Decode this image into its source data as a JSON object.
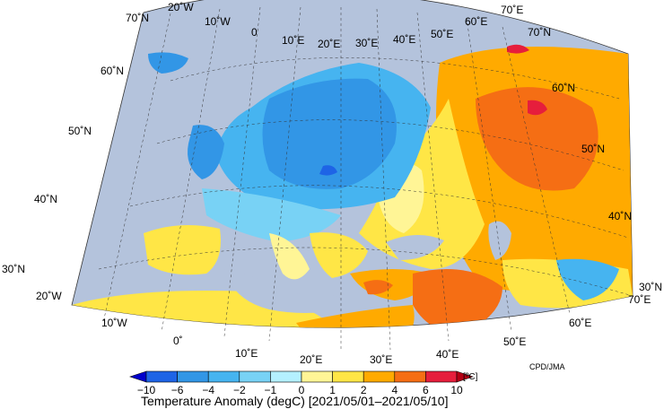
{
  "map": {
    "title": "Temperature Anomaly (degC) [2021/05/01–2021/05/10]",
    "credit": "CPD/JMA",
    "unit_label": "[ºC]",
    "lon_labels": [
      "20˚W",
      "10˚W",
      "0",
      "10˚E",
      "20˚E",
      "30˚E",
      "40˚E",
      "50˚E",
      "60˚E",
      "70˚E"
    ],
    "lon_labels_bottom": [
      "20˚W",
      "10˚W",
      "0˚",
      "10˚E",
      "20˚E",
      "30˚E",
      "40˚E",
      "50˚E",
      "60˚E",
      "70˚E"
    ],
    "lat_labels_left": [
      "70˚N",
      "60˚N",
      "50˚N",
      "40˚N",
      "30˚N"
    ],
    "lat_labels_right": [
      "70˚N",
      "60˚N",
      "50˚N",
      "40˚N",
      "30˚N"
    ],
    "colorbar": {
      "ticks": [
        "−10",
        "−6",
        "−4",
        "−2",
        "−1",
        "0",
        "1",
        "2",
        "4",
        "6",
        "10"
      ],
      "colors": [
        "#0000cc",
        "#1e64e6",
        "#3296e6",
        "#46b4f0",
        "#78d2f5",
        "#b4f0ff",
        "#fff596",
        "#ffe646",
        "#ffaa00",
        "#f56e14",
        "#e61e3c",
        "#b40014"
      ]
    },
    "colors": {
      "sea": "#b4c3dc",
      "background": "#ffffff"
    }
  }
}
